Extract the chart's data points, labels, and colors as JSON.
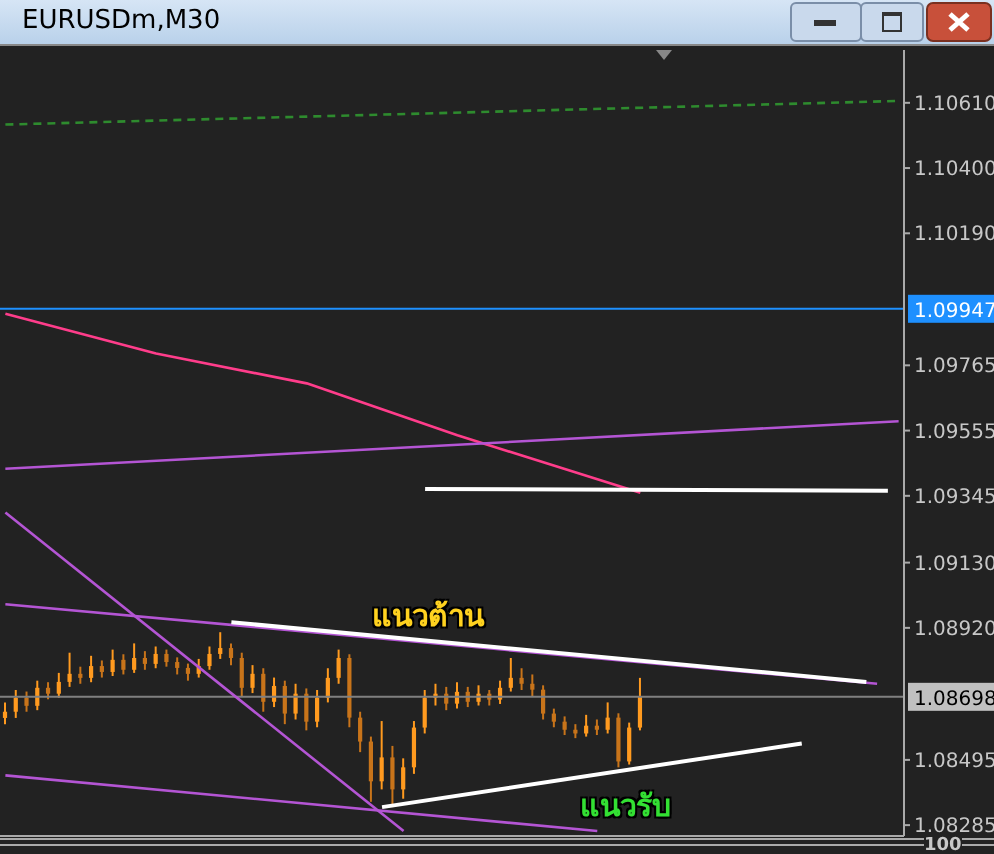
{
  "chart_data": {
    "type": "candlestick",
    "title": "EURUSDm,M30",
    "colors": [
      "#ff9a1f",
      "#ff9a1f",
      "#c8741a",
      "#ff9a1f",
      "#c8741a",
      "#ff9a1f",
      "#ff9a1f",
      "#c8741a",
      "#ff9a1f",
      "#c8741a",
      "#ff9a1f",
      "#c8741a",
      "#ff9a1f",
      "#c8741a",
      "#ff9a1f",
      "#c8741a",
      "#c8741a",
      "#c8741a",
      "#ff9a1f",
      "#ff9a1f",
      "#ff9a1f",
      "#c8741a",
      "#c8741a",
      "#ff9a1f",
      "#c8741a",
      "#ff9a1f",
      "#c8741a",
      "#ff9a1f",
      "#c8741a",
      "#ff9a1f",
      "#ff9a1f",
      "#ff9a1f",
      "#c8741a",
      "#c8741a",
      "#c8741a",
      "#ff9a1f",
      "#c8741a",
      "#ff9a1f",
      "#ff9a1f",
      "#ff9a1f",
      "#ff9a1f",
      "#c8741a",
      "#ff9a1f",
      "#c8741a",
      "#ff9a1f",
      "#c8741a",
      "#ff9a1f",
      "#ff9a1f",
      "#c8741a",
      "#c8741a",
      "#c8741a",
      "#c8741a",
      "#c8741a",
      "#c8741a",
      "#ff9a1f",
      "#c8741a",
      "#ff9a1f",
      "#c8741a",
      "#ff9a1f",
      "#ff9a1f",
      null,
      null,
      null,
      null,
      null,
      null,
      null,
      null,
      null,
      null,
      null,
      null,
      null,
      null,
      null,
      null,
      null,
      null,
      null,
      null,
      null,
      null,
      null,
      null
    ],
    "categories": [
      null,
      null,
      null,
      null,
      null,
      null,
      null,
      null,
      null,
      null,
      null,
      null,
      null,
      null,
      null,
      null,
      null,
      null,
      null,
      null,
      null,
      null,
      null,
      null,
      null,
      null,
      null,
      null,
      null,
      null,
      null,
      null,
      null,
      null,
      null,
      null,
      null,
      null,
      null,
      null,
      null,
      null,
      null,
      null,
      null,
      null,
      null,
      null,
      null,
      null,
      null,
      null,
      null,
      null,
      null,
      null,
      null,
      null,
      null,
      null,
      null,
      null,
      null,
      null,
      null,
      null,
      null,
      null,
      null,
      null,
      null,
      null,
      null,
      null,
      null,
      null,
      null,
      null,
      null,
      null,
      null,
      null,
      null,
      null
    ],
    "ohlc": [
      [
        1.0863,
        1.0868,
        1.0861,
        1.0865
      ],
      [
        1.0865,
        1.0872,
        1.0863,
        1.08695
      ],
      [
        1.08695,
        1.08715,
        1.0865,
        1.08669
      ],
      [
        1.08669,
        1.0875,
        1.08655,
        1.08727
      ],
      [
        1.08727,
        1.08745,
        1.0869,
        1.08708
      ],
      [
        1.08708,
        1.08775,
        1.08695,
        1.08746
      ],
      [
        1.08746,
        1.0884,
        1.0873,
        1.08772
      ],
      [
        1.08772,
        1.08795,
        1.0874,
        1.08759
      ],
      [
        1.08759,
        1.0883,
        1.08745,
        1.08797
      ],
      [
        1.08797,
        1.08815,
        1.0876,
        1.08778
      ],
      [
        1.08778,
        1.0885,
        1.08765,
        1.08817
      ],
      [
        1.08817,
        1.08835,
        1.0877,
        1.08785
      ],
      [
        1.08785,
        1.0887,
        1.08775,
        1.08823
      ],
      [
        1.08823,
        1.08845,
        1.08785,
        1.08804
      ],
      [
        1.08804,
        1.0886,
        1.0879,
        1.08836
      ],
      [
        1.08836,
        1.0885,
        1.08795,
        1.0881
      ],
      [
        1.0881,
        1.08825,
        1.0877,
        1.08791
      ],
      [
        1.08791,
        1.08805,
        1.0875,
        1.08772
      ],
      [
        1.08772,
        1.0882,
        1.0876,
        1.08797
      ],
      [
        1.08797,
        1.0886,
        1.08785,
        1.08836
      ],
      [
        1.08836,
        1.08906,
        1.0882,
        1.08855
      ],
      [
        1.08855,
        1.0887,
        1.088,
        1.08823
      ],
      [
        1.08823,
        1.0884,
        1.087,
        1.08727
      ],
      [
        1.08727,
        1.088,
        1.0871,
        1.08772
      ],
      [
        1.08772,
        1.0879,
        1.0865,
        1.08682
      ],
      [
        1.08682,
        1.0876,
        1.08665,
        1.08733
      ],
      [
        1.08733,
        1.0875,
        1.0861,
        1.08644
      ],
      [
        1.08644,
        1.0874,
        1.08625,
        1.08708
      ],
      [
        1.08708,
        1.08725,
        1.0859,
        1.08618
      ],
      [
        1.08618,
        1.0872,
        1.086,
        1.08695
      ],
      [
        1.08695,
        1.0879,
        1.0868,
        1.08759
      ],
      [
        1.08759,
        1.0885,
        1.0874,
        1.08823
      ],
      [
        1.08823,
        1.08835,
        1.086,
        1.08631
      ],
      [
        1.08631,
        1.0865,
        1.0852,
        1.08554
      ],
      [
        1.08554,
        1.0857,
        1.0836,
        1.08426
      ],
      [
        1.08426,
        1.0862,
        1.084,
        1.08503
      ],
      [
        1.08503,
        1.0854,
        1.08343,
        1.084
      ],
      [
        1.084,
        1.085,
        1.0837,
        1.08471
      ],
      [
        1.08471,
        1.0862,
        1.0845,
        1.08599
      ],
      [
        1.08599,
        1.0872,
        1.0858,
        1.08695
      ],
      [
        1.08695,
        1.0874,
        1.0867,
        1.08708
      ],
      [
        1.08708,
        1.0873,
        1.08655,
        1.08676
      ],
      [
        1.08676,
        1.08745,
        1.0866,
        1.08714
      ],
      [
        1.08714,
        1.0873,
        1.08665,
        1.08682
      ],
      [
        1.08682,
        1.08735,
        1.0867,
        1.08708
      ],
      [
        1.08708,
        1.0872,
        1.0867,
        1.08689
      ],
      [
        1.08689,
        1.0875,
        1.08675,
        1.08727
      ],
      [
        1.08727,
        1.08823,
        1.08715,
        1.08759
      ],
      [
        1.08759,
        1.0879,
        1.0872,
        1.0874
      ],
      [
        1.0874,
        1.0877,
        1.087,
        1.08721
      ],
      [
        1.08721,
        1.08735,
        1.08625,
        1.08644
      ],
      [
        1.08644,
        1.0866,
        1.086,
        1.08618
      ],
      [
        1.08618,
        1.08635,
        1.08575,
        1.08592
      ],
      [
        1.08592,
        1.0861,
        1.08565,
        1.0858
      ],
      [
        1.0858,
        1.0864,
        1.0857,
        1.08605
      ],
      [
        1.08605,
        1.08625,
        1.08575,
        1.08592
      ],
      [
        1.08592,
        1.0868,
        1.0858,
        1.08631
      ],
      [
        1.08631,
        1.08645,
        1.08471,
        1.0849
      ],
      [
        1.0849,
        1.08615,
        1.0848,
        1.08599
      ],
      [
        1.08599,
        1.08759,
        1.0859,
        1.08698
      ],
      null,
      null,
      null,
      null,
      null,
      null,
      null,
      null,
      null,
      null,
      null,
      null,
      null,
      null,
      null,
      null,
      null,
      null,
      null,
      null,
      null,
      null,
      null,
      null
    ],
    "series": [
      {
        "type": "line",
        "color": "#2e8b2e",
        "line_style": "dashed",
        "values": [
          1.1054,
          null,
          null,
          null,
          null,
          null,
          null,
          null,
          null,
          null,
          null,
          null,
          null,
          null,
          null,
          null,
          null,
          null,
          null,
          null,
          null,
          null,
          null,
          null,
          null,
          null,
          null,
          null,
          null,
          null,
          null,
          null,
          null,
          null,
          null,
          null,
          null,
          null,
          null,
          null,
          null,
          null,
          null,
          null,
          null,
          null,
          null,
          null,
          null,
          null,
          null,
          null,
          null,
          null,
          null,
          null,
          null,
          null,
          null,
          null,
          null,
          null,
          null,
          null,
          null,
          null,
          null,
          null,
          null,
          null,
          null,
          null,
          null,
          null,
          null,
          null,
          null,
          null,
          null,
          null,
          null,
          null,
          null,
          1.10616
        ]
      },
      {
        "type": "line",
        "color": "#ff3d8b",
        "values": [
          1.09931,
          null,
          null,
          null,
          null,
          null,
          null,
          null,
          null,
          null,
          null,
          null,
          null,
          null,
          1.09803,
          null,
          null,
          null,
          null,
          null,
          null,
          null,
          null,
          null,
          null,
          null,
          null,
          null,
          1.09707,
          null,
          null,
          null,
          null,
          null,
          null,
          null,
          null,
          null,
          null,
          null,
          null,
          null,
          1.0954,
          null,
          null,
          null,
          null,
          null,
          null,
          null,
          null,
          null,
          null,
          null,
          null,
          null,
          null,
          null,
          null,
          1.09355,
          null,
          null,
          null,
          null,
          null,
          null,
          null,
          null,
          null,
          null,
          null,
          null,
          null,
          null,
          null,
          null,
          null,
          null,
          null,
          null,
          null,
          null,
          null,
          null
        ]
      },
      {
        "type": "line",
        "color": "#b455d4",
        "values": [
          1.09432,
          null,
          null,
          null,
          null,
          null,
          null,
          null,
          null,
          null,
          null,
          null,
          null,
          null,
          null,
          null,
          null,
          null,
          null,
          null,
          null,
          null,
          null,
          null,
          null,
          null,
          null,
          null,
          null,
          null,
          null,
          null,
          null,
          null,
          null,
          null,
          null,
          null,
          null,
          null,
          null,
          null,
          null,
          null,
          null,
          null,
          null,
          null,
          null,
          null,
          null,
          null,
          null,
          null,
          null,
          null,
          null,
          null,
          null,
          null,
          null,
          null,
          null,
          null,
          null,
          null,
          null,
          null,
          null,
          null,
          null,
          null,
          null,
          null,
          null,
          null,
          null,
          null,
          null,
          null,
          null,
          null,
          null,
          1.09585
        ]
      },
      {
        "type": "line",
        "color": "#b455d4",
        "values": [
          1.09291,
          null,
          null,
          null,
          null,
          null,
          null,
          null,
          null,
          null,
          null,
          null,
          null,
          null,
          null,
          null,
          null,
          null,
          null,
          null,
          null,
          null,
          null,
          null,
          null,
          null,
          null,
          null,
          null,
          null,
          null,
          null,
          null,
          null,
          null,
          null,
          null,
          1.08266,
          null,
          null,
          null,
          null,
          null,
          null,
          null,
          null,
          null,
          null,
          null,
          null,
          null,
          null,
          null,
          null,
          null,
          null,
          null,
          null,
          null,
          null,
          null,
          null,
          null,
          null,
          null,
          null,
          null,
          null,
          null,
          null,
          null,
          null,
          null,
          null,
          null,
          null,
          null,
          null,
          null,
          null,
          null,
          null,
          null,
          null
        ]
      },
      {
        "type": "line",
        "color": "#b455d4",
        "values": [
          1.08996,
          null,
          null,
          null,
          null,
          null,
          null,
          null,
          null,
          null,
          null,
          null,
          null,
          null,
          null,
          null,
          null,
          null,
          null,
          null,
          null,
          null,
          null,
          null,
          null,
          null,
          null,
          null,
          null,
          null,
          null,
          null,
          null,
          null,
          null,
          null,
          null,
          null,
          null,
          null,
          null,
          null,
          null,
          null,
          null,
          null,
          null,
          null,
          null,
          null,
          null,
          null,
          null,
          null,
          null,
          null,
          null,
          null,
          null,
          null,
          null,
          null,
          null,
          null,
          null,
          null,
          null,
          null,
          null,
          null,
          null,
          null,
          null,
          null,
          null,
          null,
          null,
          null,
          null,
          null,
          null,
          1.0874,
          null,
          null
        ]
      },
      {
        "type": "line",
        "color": "#b455d4",
        "values": [
          1.08445,
          null,
          null,
          null,
          null,
          null,
          null,
          null,
          null,
          null,
          null,
          null,
          null,
          null,
          null,
          null,
          null,
          null,
          null,
          null,
          null,
          null,
          null,
          null,
          null,
          null,
          null,
          null,
          null,
          null,
          null,
          null,
          null,
          null,
          null,
          null,
          null,
          null,
          null,
          null,
          null,
          null,
          null,
          null,
          null,
          null,
          null,
          null,
          null,
          null,
          null,
          null,
          null,
          null,
          null,
          1.08266,
          null,
          null,
          null,
          null,
          null,
          null,
          null,
          null,
          null,
          null,
          null,
          null,
          null,
          null,
          null,
          null,
          null,
          null,
          null,
          null,
          null,
          null,
          null,
          null,
          null,
          null,
          null,
          null
        ]
      },
      {
        "type": "line",
        "color": "#ffffff",
        "values": [
          null,
          null,
          null,
          null,
          null,
          null,
          null,
          null,
          null,
          null,
          null,
          null,
          null,
          null,
          null,
          null,
          null,
          null,
          null,
          null,
          null,
          1.08938,
          null,
          null,
          null,
          null,
          null,
          null,
          null,
          null,
          null,
          null,
          null,
          null,
          null,
          null,
          null,
          null,
          null,
          null,
          null,
          null,
          null,
          null,
          null,
          null,
          null,
          null,
          null,
          null,
          null,
          null,
          null,
          null,
          null,
          null,
          null,
          null,
          null,
          null,
          null,
          null,
          null,
          null,
          null,
          null,
          null,
          null,
          null,
          null,
          null,
          null,
          null,
          null,
          null,
          null,
          null,
          null,
          null,
          null,
          1.08746,
          null,
          null,
          null
        ]
      },
      {
        "type": "line",
        "color": "#ffffff",
        "values": [
          null,
          null,
          null,
          null,
          null,
          null,
          null,
          null,
          null,
          null,
          null,
          null,
          null,
          null,
          null,
          null,
          null,
          null,
          null,
          null,
          null,
          null,
          null,
          null,
          null,
          null,
          null,
          null,
          null,
          null,
          null,
          null,
          null,
          null,
          null,
          1.08343,
          null,
          null,
          null,
          null,
          null,
          null,
          null,
          null,
          null,
          null,
          null,
          null,
          null,
          null,
          null,
          null,
          null,
          null,
          null,
          null,
          null,
          null,
          null,
          null,
          null,
          null,
          null,
          null,
          null,
          null,
          null,
          null,
          null,
          null,
          null,
          null,
          null,
          null,
          1.08548,
          null,
          null,
          null,
          null,
          null,
          null,
          null,
          null,
          null
        ]
      },
      {
        "type": "line",
        "color": "#ffffff",
        "values": [
          null,
          null,
          null,
          null,
          null,
          null,
          null,
          null,
          null,
          null,
          null,
          null,
          null,
          null,
          null,
          null,
          null,
          null,
          null,
          null,
          null,
          null,
          null,
          null,
          null,
          null,
          null,
          null,
          null,
          null,
          null,
          null,
          null,
          null,
          null,
          null,
          null,
          null,
          null,
          1.09367,
          null,
          null,
          null,
          null,
          null,
          null,
          null,
          null,
          null,
          null,
          null,
          null,
          null,
          null,
          null,
          null,
          null,
          null,
          null,
          null,
          null,
          null,
          null,
          null,
          null,
          null,
          null,
          null,
          null,
          null,
          null,
          null,
          null,
          null,
          null,
          null,
          null,
          null,
          null,
          null,
          null,
          null,
          1.09361,
          null
        ]
      }
    ],
    "ylim": [
      1.0825,
      1.1078
    ],
    "yticks": [
      {
        "value": 1.1061,
        "label": "1.10610"
      },
      {
        "value": 1.104,
        "label": "1.10400"
      },
      {
        "value": 1.1019,
        "label": "1.10190"
      },
      {
        "value": 1.09765,
        "label": "1.09765"
      },
      {
        "value": 1.09555,
        "label": "1.09555"
      },
      {
        "value": 1.09345,
        "label": "1.09345"
      },
      {
        "value": 1.0913,
        "label": "1.09130"
      },
      {
        "value": 1.0892,
        "label": "1.08920"
      },
      {
        "value": 1.08495,
        "label": "1.08495"
      },
      {
        "value": 1.08285,
        "label": "1.08285"
      }
    ],
    "ref_lines": [
      {
        "axis": "y",
        "value": 1.09947,
        "label": "1.09947",
        "color": "#1e90ff"
      },
      {
        "axis": "y",
        "value": 1.08698,
        "label": "1.08698",
        "color": "#808080"
      }
    ],
    "annotations": [
      "แนวต้าน",
      "แนวรับ",
      "100"
    ],
    "tick_labels": "y",
    "legend": false,
    "grid": false
  }
}
